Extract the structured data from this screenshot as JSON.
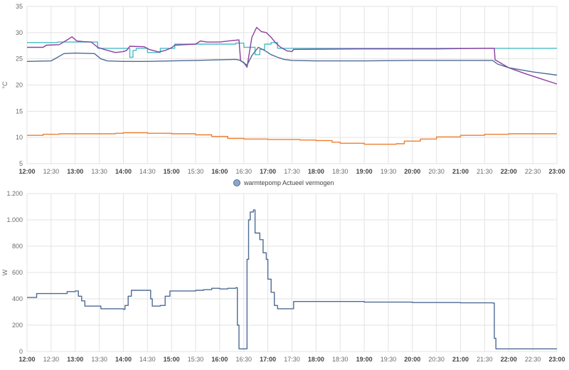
{
  "chart_data": [
    {
      "type": "line",
      "ylabel": "°C",
      "ylim": [
        5,
        35
      ],
      "yticks": [
        5,
        10,
        15,
        20,
        25,
        30,
        35
      ],
      "grid": true,
      "x_ticks": [
        {
          "t": "12:00",
          "label": "12:00",
          "bold": true
        },
        {
          "t": "12:30",
          "label": "12:30",
          "bold": false
        },
        {
          "t": "13:00",
          "label": "13:00",
          "bold": true
        },
        {
          "t": "13:30",
          "label": "13:30",
          "bold": false
        },
        {
          "t": "14:00",
          "label": "14:00",
          "bold": true
        },
        {
          "t": "14:30",
          "label": "14:30",
          "bold": false
        },
        {
          "t": "15:00",
          "label": "15:00",
          "bold": true
        },
        {
          "t": "15:30",
          "label": "15:30",
          "bold": false
        },
        {
          "t": "16:00",
          "label": "16:00",
          "bold": true
        },
        {
          "t": "16:30",
          "label": "16:30",
          "bold": false
        },
        {
          "t": "17:00",
          "label": "17:00",
          "bold": true
        },
        {
          "t": "17:30",
          "label": "17:30",
          "bold": false
        },
        {
          "t": "18:00",
          "label": "18:00",
          "bold": true
        },
        {
          "t": "18:30",
          "label": "18:30",
          "bold": false
        },
        {
          "t": "19:00",
          "label": "19:00",
          "bold": true
        },
        {
          "t": "19:30",
          "label": "19:30",
          "bold": false
        },
        {
          "t": "20:00",
          "label": "20:00",
          "bold": true
        },
        {
          "t": "20:30",
          "label": "20:30",
          "bold": false
        },
        {
          "t": "21:00",
          "label": "21:00",
          "bold": true
        },
        {
          "t": "21:30",
          "label": "21:30",
          "bold": false
        },
        {
          "t": "22:00",
          "label": "22:00",
          "bold": true
        },
        {
          "t": "22:30",
          "label": "22:30",
          "bold": false
        },
        {
          "t": "23:00",
          "label": "23:00",
          "bold": true
        }
      ],
      "series": [
        {
          "color": "#46bdc6",
          "step": true,
          "points": [
            [
              "12:00",
              28.1
            ],
            [
              "12:36",
              28.1
            ],
            [
              "12:38",
              28.2
            ],
            [
              "13:26",
              28.2
            ],
            [
              "13:28",
              27.0
            ],
            [
              "14:06",
              27.0
            ],
            [
              "14:08",
              25.3
            ],
            [
              "14:12",
              26.6
            ],
            [
              "14:16",
              27.0
            ],
            [
              "14:26",
              27.0
            ],
            [
              "14:30",
              26.2
            ],
            [
              "14:42",
              26.2
            ],
            [
              "14:46",
              27.0
            ],
            [
              "15:00",
              27.0
            ],
            [
              "15:04",
              27.8
            ],
            [
              "16:18",
              27.8
            ],
            [
              "16:20",
              28.0
            ],
            [
              "16:28",
              28.0
            ],
            [
              "16:30",
              27.2
            ],
            [
              "16:42",
              27.2
            ],
            [
              "16:44",
              25.8
            ],
            [
              "16:50",
              26.8
            ],
            [
              "16:56",
              27.8
            ],
            [
              "17:02",
              27.8
            ],
            [
              "17:04",
              28.1
            ],
            [
              "17:08",
              28.1
            ],
            [
              "17:12",
              27.0
            ],
            [
              "23:00",
              27.0
            ]
          ]
        },
        {
          "color": "#8e3fa0",
          "step": false,
          "points": [
            [
              "12:00",
              27.2
            ],
            [
              "12:20",
              27.2
            ],
            [
              "12:24",
              27.6
            ],
            [
              "12:40",
              27.7
            ],
            [
              "12:50",
              28.6
            ],
            [
              "12:56",
              29.2
            ],
            [
              "13:02",
              28.4
            ],
            [
              "13:10",
              28.3
            ],
            [
              "13:20",
              28.2
            ],
            [
              "13:28",
              27.2
            ],
            [
              "13:36",
              26.8
            ],
            [
              "13:50",
              26.2
            ],
            [
              "14:00",
              26.4
            ],
            [
              "14:04",
              26.6
            ],
            [
              "14:08",
              27.4
            ],
            [
              "14:26",
              27.3
            ],
            [
              "14:32",
              26.8
            ],
            [
              "14:44",
              26.3
            ],
            [
              "14:52",
              26.6
            ],
            [
              "15:00",
              27.1
            ],
            [
              "15:04",
              27.6
            ],
            [
              "15:30",
              27.8
            ],
            [
              "15:36",
              28.4
            ],
            [
              "15:44",
              28.2
            ],
            [
              "16:00",
              28.2
            ],
            [
              "16:16",
              28.5
            ],
            [
              "16:24",
              28.6
            ],
            [
              "16:26",
              24.6
            ],
            [
              "16:30",
              24.3
            ],
            [
              "16:34",
              23.4
            ],
            [
              "16:40",
              29.1
            ],
            [
              "16:46",
              31.0
            ],
            [
              "16:52",
              30.2
            ],
            [
              "16:58",
              30.0
            ],
            [
              "17:04",
              29.1
            ],
            [
              "17:10",
              28.0
            ],
            [
              "17:16",
              27.2
            ],
            [
              "17:24",
              26.5
            ],
            [
              "17:30",
              26.4
            ],
            [
              "17:32",
              26.8
            ],
            [
              "19:00",
              26.9
            ],
            [
              "20:30",
              26.9
            ],
            [
              "21:30",
              27.0
            ],
            [
              "21:42",
              27.0
            ],
            [
              "21:43",
              24.8
            ],
            [
              "21:50",
              24.2
            ],
            [
              "22:00",
              23.3
            ],
            [
              "22:20",
              22.2
            ],
            [
              "22:40",
              21.2
            ],
            [
              "23:00",
              20.2
            ]
          ]
        },
        {
          "color": "#4f6b94",
          "step": false,
          "points": [
            [
              "12:00",
              24.5
            ],
            [
              "12:30",
              24.6
            ],
            [
              "12:38",
              25.3
            ],
            [
              "12:46",
              26.0
            ],
            [
              "13:00",
              26.1
            ],
            [
              "13:24",
              26.0
            ],
            [
              "13:32",
              25.0
            ],
            [
              "13:40",
              24.6
            ],
            [
              "14:00",
              24.5
            ],
            [
              "14:30",
              24.5
            ],
            [
              "15:00",
              24.6
            ],
            [
              "15:30",
              24.7
            ],
            [
              "16:00",
              24.8
            ],
            [
              "16:20",
              24.9
            ],
            [
              "16:26",
              24.7
            ],
            [
              "16:30",
              24.2
            ],
            [
              "16:34",
              23.8
            ],
            [
              "16:40",
              25.6
            ],
            [
              "16:48",
              27.2
            ],
            [
              "16:56",
              26.6
            ],
            [
              "17:04",
              25.8
            ],
            [
              "17:12",
              25.3
            ],
            [
              "17:20",
              24.9
            ],
            [
              "17:30",
              24.7
            ],
            [
              "18:00",
              24.6
            ],
            [
              "19:00",
              24.6
            ],
            [
              "20:00",
              24.7
            ],
            [
              "21:00",
              24.7
            ],
            [
              "21:40",
              24.7
            ],
            [
              "21:46",
              24.0
            ],
            [
              "22:00",
              23.3
            ],
            [
              "22:30",
              22.5
            ],
            [
              "23:00",
              21.9
            ]
          ]
        },
        {
          "color": "#ef7f2f",
          "step": true,
          "points": [
            [
              "12:00",
              10.4
            ],
            [
              "12:20",
              10.6
            ],
            [
              "12:40",
              10.7
            ],
            [
              "13:40",
              10.7
            ],
            [
              "13:50",
              10.8
            ],
            [
              "14:00",
              10.9
            ],
            [
              "14:30",
              10.8
            ],
            [
              "15:00",
              10.7
            ],
            [
              "15:30",
              10.5
            ],
            [
              "15:50",
              10.2
            ],
            [
              "16:10",
              9.8
            ],
            [
              "16:30",
              9.7
            ],
            [
              "17:00",
              9.6
            ],
            [
              "17:40",
              9.5
            ],
            [
              "18:00",
              9.4
            ],
            [
              "18:20",
              9.1
            ],
            [
              "18:30",
              8.9
            ],
            [
              "19:00",
              8.7
            ],
            [
              "19:40",
              8.8
            ],
            [
              "19:50",
              9.3
            ],
            [
              "20:10",
              9.7
            ],
            [
              "20:30",
              10.1
            ],
            [
              "21:00",
              10.4
            ],
            [
              "21:30",
              10.6
            ],
            [
              "22:00",
              10.7
            ],
            [
              "23:00",
              10.7
            ]
          ]
        }
      ]
    },
    {
      "type": "line",
      "ylabel": "W",
      "ylim": [
        0,
        1200
      ],
      "yticks": [
        0,
        200,
        400,
        600,
        800,
        1000,
        1200
      ],
      "ytick_labels": [
        "0",
        "200",
        "400",
        "600",
        "800",
        "1.000",
        "1.200"
      ],
      "grid": true,
      "legend": {
        "position": "top-center",
        "label": "warmtepomp Actueel vermogen",
        "color": "#8fa7c7"
      },
      "series": [
        {
          "name": "warmtepomp Actueel vermogen",
          "color": "#4f6b94",
          "step": true,
          "points": [
            [
              "12:00",
              410
            ],
            [
              "12:12",
              440
            ],
            [
              "12:40",
              440
            ],
            [
              "12:50",
              455
            ],
            [
              "13:00",
              460
            ],
            [
              "13:04",
              420
            ],
            [
              "13:08",
              385
            ],
            [
              "13:12",
              345
            ],
            [
              "13:30",
              345
            ],
            [
              "13:32",
              325
            ],
            [
              "14:00",
              320
            ],
            [
              "14:02",
              350
            ],
            [
              "14:06",
              420
            ],
            [
              "14:10",
              465
            ],
            [
              "14:32",
              465
            ],
            [
              "14:34",
              400
            ],
            [
              "14:36",
              345
            ],
            [
              "14:46",
              350
            ],
            [
              "14:52",
              420
            ],
            [
              "14:58",
              460
            ],
            [
              "15:30",
              465
            ],
            [
              "15:40",
              470
            ],
            [
              "15:50",
              480
            ],
            [
              "16:00",
              475
            ],
            [
              "16:10",
              480
            ],
            [
              "16:20",
              485
            ],
            [
              "16:22",
              200
            ],
            [
              "16:24",
              20
            ],
            [
              "16:32",
              20
            ],
            [
              "16:34",
              700
            ],
            [
              "16:36",
              1000
            ],
            [
              "16:38",
              1060
            ],
            [
              "16:42",
              1075
            ],
            [
              "16:44",
              900
            ],
            [
              "16:50",
              850
            ],
            [
              "16:54",
              750
            ],
            [
              "16:58",
              700
            ],
            [
              "17:00",
              550
            ],
            [
              "17:04",
              450
            ],
            [
              "17:08",
              350
            ],
            [
              "17:12",
              325
            ],
            [
              "17:30",
              325
            ],
            [
              "17:32",
              380
            ],
            [
              "19:00",
              375
            ],
            [
              "20:00",
              372
            ],
            [
              "21:00",
              370
            ],
            [
              "21:40",
              368
            ],
            [
              "21:42",
              100
            ],
            [
              "21:44",
              20
            ],
            [
              "23:00",
              20
            ]
          ]
        }
      ]
    }
  ]
}
